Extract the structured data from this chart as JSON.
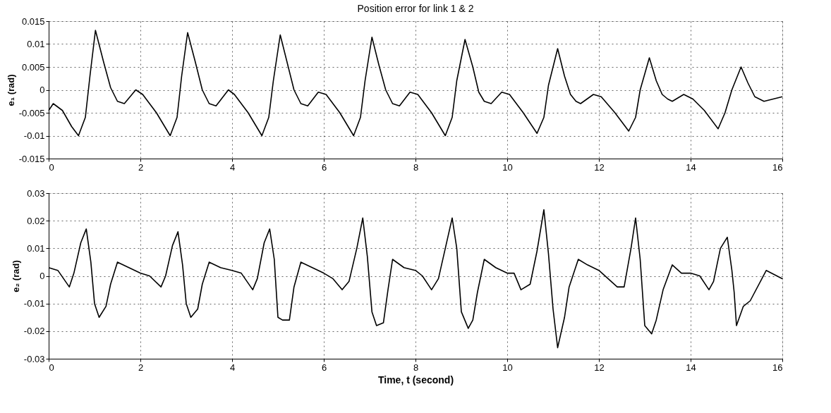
{
  "chart_data": [
    {
      "type": "line",
      "title": "Position error for link 1 & 2",
      "ylabel": "e₁ (rad)",
      "grid": true,
      "xlim": [
        0,
        16
      ],
      "xticks": [
        0,
        2,
        4,
        6,
        8,
        10,
        12,
        14,
        16
      ],
      "ylim": [
        -0.015,
        0.015
      ],
      "yticks": [
        -0.015,
        -0.01,
        -0.005,
        0,
        0.005,
        0.01,
        0.015
      ],
      "x": [
        0,
        0.1,
        0.3,
        0.5,
        0.65,
        0.8,
        0.9,
        1.02,
        1.2,
        1.35,
        1.5,
        1.65,
        1.9,
        2.05,
        2.35,
        2.65,
        2.8,
        2.9,
        3.03,
        3.2,
        3.35,
        3.5,
        3.65,
        3.92,
        4.05,
        4.35,
        4.65,
        4.8,
        4.9,
        5.05,
        5.2,
        5.35,
        5.5,
        5.65,
        5.88,
        6.05,
        6.35,
        6.65,
        6.8,
        6.9,
        7.05,
        7.2,
        7.35,
        7.5,
        7.65,
        7.88,
        8.05,
        8.35,
        8.65,
        8.8,
        8.9,
        9.08,
        9.25,
        9.38,
        9.5,
        9.65,
        9.88,
        10.05,
        10.35,
        10.65,
        10.8,
        10.9,
        11.1,
        11.25,
        11.38,
        11.5,
        11.6,
        11.88,
        12.05,
        12.35,
        12.65,
        12.8,
        12.9,
        13.1,
        13.25,
        13.38,
        13.5,
        13.6,
        13.85,
        14.05,
        14.3,
        14.6,
        14.75,
        14.9,
        15.1,
        15.25,
        15.4,
        15.6,
        15.8,
        16
      ],
      "series": [
        {
          "color": "#000000",
          "values": [
            -0.0045,
            -0.003,
            -0.0045,
            -0.008,
            -0.01,
            -0.006,
            0.003,
            0.013,
            0.006,
            0.0005,
            -0.0025,
            -0.003,
            0,
            -0.001,
            -0.005,
            -0.01,
            -0.006,
            0.003,
            0.0125,
            0.006,
            0,
            -0.003,
            -0.0035,
            0,
            -0.001,
            -0.005,
            -0.01,
            -0.006,
            0.002,
            0.012,
            0.006,
            0,
            -0.003,
            -0.0035,
            -0.0005,
            -0.001,
            -0.005,
            -0.01,
            -0.006,
            0.002,
            0.0115,
            0.0055,
            0,
            -0.003,
            -0.0035,
            -0.0005,
            -0.001,
            -0.005,
            -0.01,
            -0.006,
            0.002,
            0.011,
            0.005,
            -0.0005,
            -0.0025,
            -0.003,
            -0.0005,
            -0.001,
            -0.005,
            -0.0095,
            -0.006,
            0.001,
            0.009,
            0.003,
            -0.001,
            -0.0025,
            -0.003,
            -0.001,
            -0.0015,
            -0.005,
            -0.009,
            -0.006,
            0,
            0.007,
            0.002,
            -0.001,
            -0.002,
            -0.0025,
            -0.001,
            -0.002,
            -0.0045,
            -0.0085,
            -0.005,
            0,
            0.005,
            0.0015,
            -0.0015,
            -0.0025,
            -0.002,
            -0.0015
          ]
        }
      ]
    },
    {
      "type": "line",
      "xlabel": "Time, t (second)",
      "ylabel": "e₂ (rad)",
      "grid": true,
      "xlim": [
        0,
        16
      ],
      "xticks": [
        0,
        2,
        4,
        6,
        8,
        10,
        12,
        14,
        16
      ],
      "ylim": [
        -0.03,
        0.03
      ],
      "yticks": [
        -0.03,
        -0.02,
        -0.01,
        0,
        0.01,
        0.02,
        0.03
      ],
      "x": [
        0,
        0.2,
        0.45,
        0.55,
        0.7,
        0.82,
        0.92,
        1.0,
        1.1,
        1.25,
        1.35,
        1.5,
        1.75,
        2.0,
        2.2,
        2.45,
        2.55,
        2.7,
        2.82,
        2.92,
        3.0,
        3.1,
        3.25,
        3.35,
        3.5,
        3.75,
        4.0,
        4.2,
        4.45,
        4.55,
        4.7,
        4.82,
        4.92,
        5.0,
        5.1,
        5.25,
        5.35,
        5.5,
        5.75,
        6.0,
        6.2,
        6.4,
        6.55,
        6.72,
        6.85,
        6.95,
        7.05,
        7.15,
        7.3,
        7.4,
        7.5,
        7.75,
        8.0,
        8.15,
        8.35,
        8.5,
        8.65,
        8.8,
        8.9,
        9.0,
        9.15,
        9.25,
        9.35,
        9.5,
        9.75,
        10.0,
        10.15,
        10.3,
        10.5,
        10.65,
        10.8,
        10.9,
        11.0,
        11.1,
        11.25,
        11.35,
        11.55,
        11.75,
        12.0,
        12.2,
        12.4,
        12.55,
        12.7,
        12.8,
        12.9,
        13.0,
        13.15,
        13.25,
        13.4,
        13.6,
        13.8,
        14.0,
        14.2,
        14.4,
        14.5,
        14.65,
        14.8,
        14.9,
        14.95,
        15.0,
        15.15,
        15.3,
        15.65,
        16.0
      ],
      "series": [
        {
          "color": "#000000",
          "values": [
            0.003,
            0.002,
            -0.004,
            0.001,
            0.012,
            0.017,
            0.005,
            -0.01,
            -0.015,
            -0.011,
            -0.003,
            0.005,
            0.003,
            0.001,
            0.0,
            -0.004,
            0.0,
            0.011,
            0.016,
            0.004,
            -0.01,
            -0.015,
            -0.012,
            -0.003,
            0.005,
            0.003,
            0.002,
            0.001,
            -0.005,
            -0.001,
            0.012,
            0.017,
            0.006,
            -0.015,
            -0.016,
            -0.016,
            -0.004,
            0.005,
            0.003,
            0.001,
            -0.001,
            -0.005,
            -0.002,
            0.01,
            0.021,
            0.007,
            -0.013,
            -0.018,
            -0.017,
            -0.005,
            0.006,
            0.003,
            0.002,
            0.0,
            -0.005,
            -0.001,
            0.01,
            0.021,
            0.01,
            -0.013,
            -0.019,
            -0.016,
            -0.006,
            0.006,
            0.003,
            0.001,
            0.001,
            -0.005,
            -0.003,
            0.009,
            0.024,
            0.008,
            -0.012,
            -0.026,
            -0.015,
            -0.004,
            0.006,
            0.004,
            0.002,
            -0.001,
            -0.004,
            -0.004,
            0.01,
            0.021,
            0.006,
            -0.018,
            -0.021,
            -0.016,
            -0.005,
            0.004,
            0.001,
            0.001,
            0.0,
            -0.005,
            -0.002,
            0.01,
            0.014,
            0.002,
            -0.006,
            -0.018,
            -0.011,
            -0.009,
            0.002,
            -0.001
          ]
        }
      ]
    }
  ]
}
